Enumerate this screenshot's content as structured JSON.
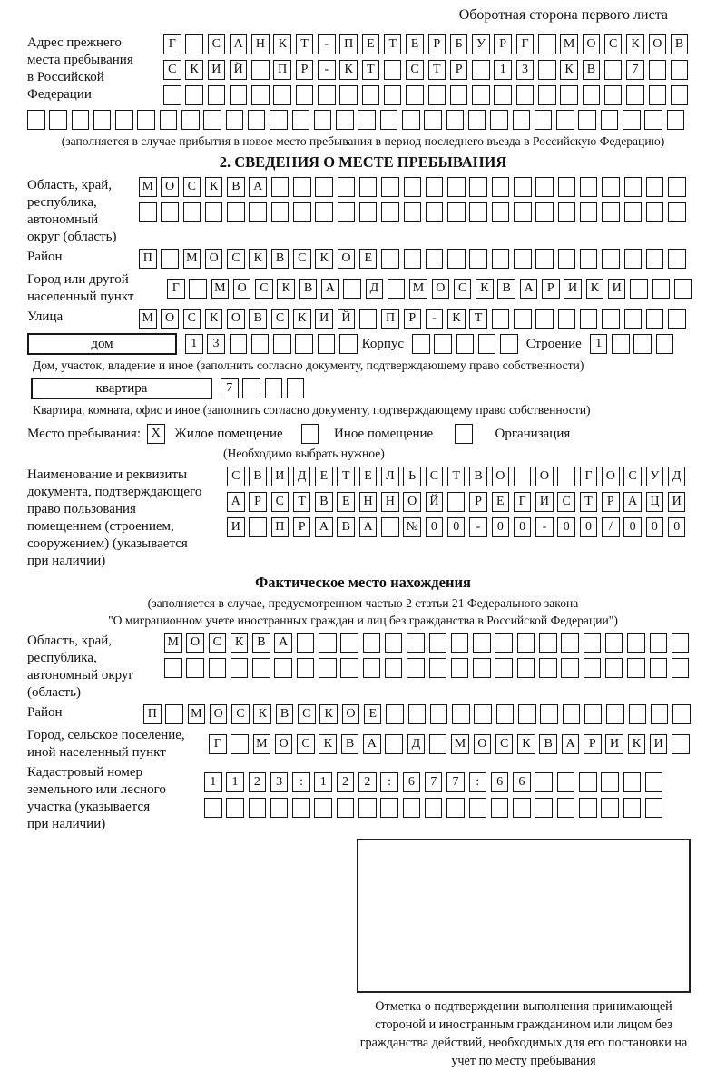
{
  "header": {
    "note": "Оборотная сторона первого листа"
  },
  "prev_address": {
    "label": "Адрес прежнего\nместа пребывания\nв Российской\nФедерации",
    "row1": "Г САНКТ-ПЕТЕРБУРГ МОСКОВ",
    "row2": "СКИЙ ПР-КТ СТР 13 КВ 7  ",
    "row3": "                        ",
    "row4": "                              ",
    "caption": "(заполняется в случае прибытия в новое место пребывания в период последнего въезда в Российскую Федерацию)"
  },
  "section2": {
    "title": "2. СВЕДЕНИЯ О МЕСТЕ ПРЕБЫВАНИЯ",
    "oblast": {
      "label": "Область, край,\nреспублика,\nавтономный\nокруг (область)",
      "row1": "МОСКВА                   ",
      "row2": "                         "
    },
    "raion": {
      "label": "Район",
      "row": "П МОСКВСКОЕ              "
    },
    "gorod": {
      "label": "Город или другой\nнаселенный пункт",
      "row": "Г МОСКВА Д МОСКВАРИКИ   "
    },
    "ulitsa": {
      "label": "Улица",
      "row": "МОСКОВСКИЙ ПР-КТ         "
    },
    "dom": {
      "label": "дом",
      "cells": "13      ",
      "korpus_label": "Корпус",
      "korpus_cells": "     ",
      "stroenie_label": "Строение",
      "stroenie_cells": "1   ",
      "caption": "Дом, участок, владение и иное (заполнить согласно документу, подтверждающему право собственности)"
    },
    "kvartira": {
      "label": "квартира",
      "cells": "7   ",
      "caption": "Квартира, комната, офис и иное (заполнить согласно документу, подтверждающему право собственности)"
    },
    "mesto": {
      "label": "Место пребывания:",
      "opt1_mark": "X",
      "opt1": "Жилое помещение",
      "opt2_mark": "",
      "opt2": "Иное помещение",
      "opt3_mark": "",
      "opt3": "Организация",
      "hint": "(Необходимо выбрать нужное)"
    },
    "doc": {
      "label": "Наименование и реквизиты\nдокумента, подтверждающего\nправо пользования\nпомещением (строением,\nсооружением) (указывается\nпри наличии)",
      "row1": "СВИДЕТЕЛЬСТВО О ГОСУД",
      "row2": "АРСТВЕННОЙ РЕГИСТРАЦИ",
      "row3": "И ПРАВА №00-00-00/000"
    }
  },
  "fact": {
    "title": "Фактическое место нахождения",
    "caption1": "(заполняется в случае, предусмотренном частью 2 статьи 21 Федерального закона",
    "caption2": "\"О миграционном учете иностранных граждан и лиц без гражданства в Российской Федерации\")",
    "oblast": {
      "label": "Область, край,\nреспублика,\nавтономный округ\n(область)",
      "row1": "МОСКВА                  ",
      "row2": "                        "
    },
    "raion": {
      "label": "Район",
      "row": "П МОСКВСКОЕ              "
    },
    "gorod": {
      "label": "Город, сельское поселение,\nиной населенный пункт",
      "row": "Г МОСКВА Д МОСКВАРИКИ "
    },
    "kadastr": {
      "label": "Кадастровый номер\nземельного или лесного\nучастка (указывается\nпри наличии)",
      "row1": "1123:122:677:66      ",
      "row2": "                     "
    }
  },
  "stamp": {
    "note": "Отметка о подтверждении выполнения принимающей стороной и иностранным гражданином или лицом без гражданства действий, необходимых для его постановки на учет по месту пребывания"
  }
}
